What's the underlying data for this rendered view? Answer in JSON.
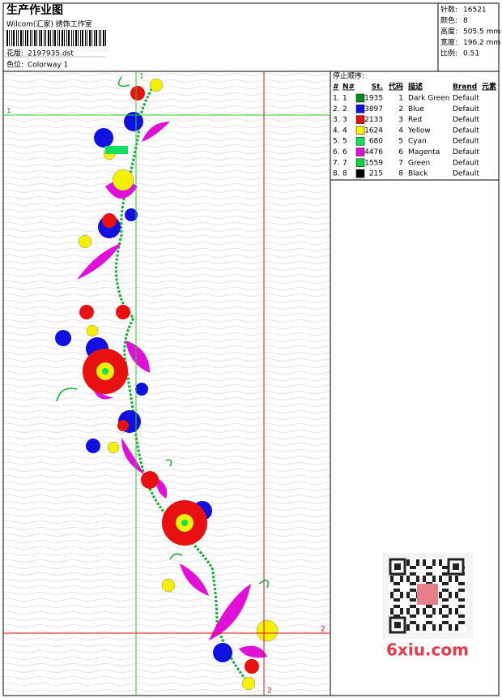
{
  "header": {
    "title": "生产作业图",
    "subtitle": "Wilcom(汇家) 绣饰工作室",
    "design_label": "花版:",
    "design": "2197935.dst",
    "colorway_label": "色位:",
    "colorway": "Colorway 1"
  },
  "info": [
    {
      "label": "针数:",
      "value": "16521"
    },
    {
      "label": "颜色:",
      "value": "8"
    },
    {
      "label": "高度:",
      "value": "505.5 mm"
    },
    {
      "label": "宽度:",
      "value": "196.2 mm"
    },
    {
      "label": "比例:",
      "value": "0.51"
    }
  ],
  "table": {
    "title": "停止顺序:",
    "columns": [
      "#",
      "N#",
      "St.",
      "代码",
      "描述",
      "Brand",
      "元素"
    ],
    "rows": [
      {
        "num": "1.",
        "n": 1,
        "color": "#0b8a1e",
        "stitches": 1935,
        "code": 1,
        "desc": "Dark Green",
        "brand": "Default"
      },
      {
        "num": "2.",
        "n": 2,
        "color": "#1010e0",
        "stitches": 3897,
        "code": 2,
        "desc": "Blue",
        "brand": "Default"
      },
      {
        "num": "3.",
        "n": 3,
        "color": "#e81010",
        "stitches": 2133,
        "code": 3,
        "desc": "Red",
        "brand": "Default"
      },
      {
        "num": "4.",
        "n": 4,
        "color": "#f5f000",
        "stitches": 1624,
        "code": 4,
        "desc": "Yellow",
        "brand": "Default"
      },
      {
        "num": "5.",
        "n": 5,
        "color": "#10e060",
        "stitches": 680,
        "code": 5,
        "desc": "Cyan",
        "brand": "Default"
      },
      {
        "num": "6.",
        "n": 6,
        "color": "#e010d8",
        "stitches": 4476,
        "code": 6,
        "desc": "Magenta",
        "brand": "Default"
      },
      {
        "num": "7.",
        "n": 7,
        "color": "#10d040",
        "stitches": 1559,
        "code": 7,
        "desc": "Green",
        "brand": "Default"
      },
      {
        "num": "8.",
        "n": 8,
        "color": "#000000",
        "stitches": 215,
        "code": 8,
        "desc": "Black",
        "brand": "Default"
      }
    ]
  },
  "guides": {
    "first": "1",
    "second": "2"
  },
  "watermark": "6xiu.com"
}
